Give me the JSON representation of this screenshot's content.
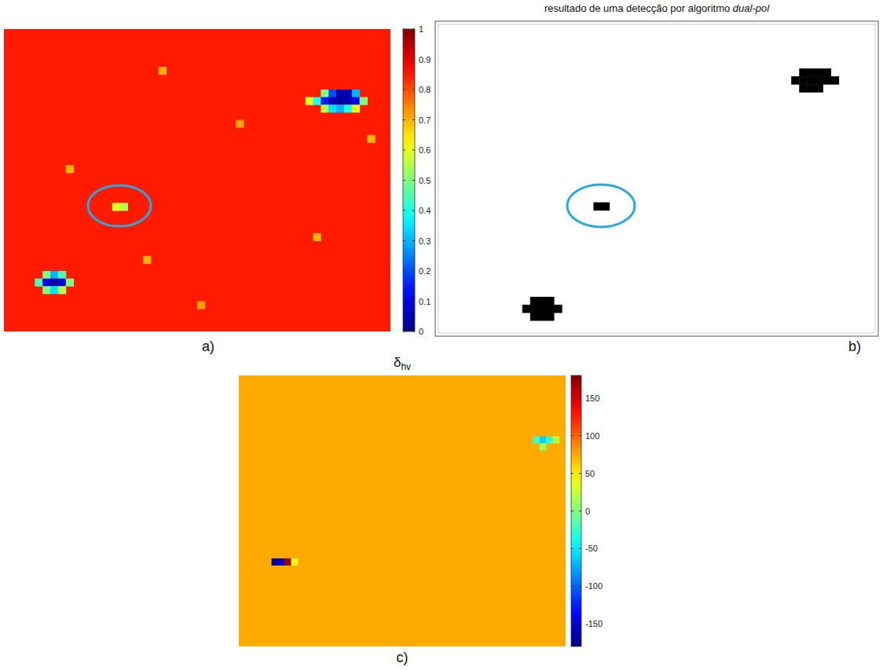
{
  "chart_data": [
    {
      "type": "heatmap",
      "label": "a)",
      "rows": 40,
      "cols": 50,
      "background": 0.85,
      "cells": [
        [
          8,
          41,
          0.5
        ],
        [
          8,
          42,
          0.2
        ],
        [
          8,
          43,
          0.05
        ],
        [
          8,
          44,
          0.05
        ],
        [
          8,
          45,
          0.3
        ],
        [
          9,
          39,
          0.6
        ],
        [
          9,
          40,
          0.4
        ],
        [
          9,
          41,
          0.15
        ],
        [
          9,
          42,
          0.05
        ],
        [
          9,
          43,
          0.02
        ],
        [
          9,
          44,
          0.05
        ],
        [
          9,
          45,
          0.1
        ],
        [
          9,
          46,
          0.5
        ],
        [
          10,
          41,
          0.55
        ],
        [
          10,
          42,
          0.35
        ],
        [
          10,
          43,
          0.3
        ],
        [
          10,
          44,
          0.4
        ],
        [
          10,
          45,
          0.6
        ],
        [
          32,
          5,
          0.5
        ],
        [
          32,
          6,
          0.3
        ],
        [
          32,
          7,
          0.45
        ],
        [
          33,
          4,
          0.45
        ],
        [
          33,
          5,
          0.1
        ],
        [
          33,
          6,
          0.03
        ],
        [
          33,
          7,
          0.08
        ],
        [
          33,
          8,
          0.5
        ],
        [
          34,
          5,
          0.5
        ],
        [
          34,
          6,
          0.35
        ],
        [
          34,
          7,
          0.55
        ],
        [
          23,
          14,
          0.6
        ],
        [
          23,
          15,
          0.55
        ],
        [
          5,
          20,
          0.7
        ],
        [
          12,
          30,
          0.72
        ],
        [
          18,
          8,
          0.7
        ],
        [
          27,
          40,
          0.7
        ],
        [
          36,
          25,
          0.72
        ],
        [
          14,
          47,
          0.7
        ],
        [
          30,
          18,
          0.7
        ]
      ],
      "colorbar": {
        "range": [
          0,
          1
        ],
        "ticks": [
          0,
          0.1,
          0.2,
          0.3,
          0.4,
          0.5,
          0.6,
          0.7,
          0.8,
          0.9,
          1
        ]
      }
    },
    {
      "type": "heatmap",
      "title": "resultado de uma detecção por algoritmo dual-pol",
      "label": "b)",
      "rows": 40,
      "cols": 56,
      "background": 1,
      "cells": [
        [
          6,
          46,
          0
        ],
        [
          6,
          47,
          0
        ],
        [
          6,
          48,
          0
        ],
        [
          6,
          49,
          0
        ],
        [
          7,
          45,
          0
        ],
        [
          7,
          46,
          0
        ],
        [
          7,
          47,
          0
        ],
        [
          7,
          48,
          0
        ],
        [
          7,
          49,
          0
        ],
        [
          7,
          50,
          0
        ],
        [
          8,
          46,
          0
        ],
        [
          8,
          47,
          0
        ],
        [
          8,
          48,
          0
        ],
        [
          35,
          12,
          0
        ],
        [
          35,
          13,
          0
        ],
        [
          35,
          14,
          0
        ],
        [
          36,
          11,
          0
        ],
        [
          36,
          12,
          0
        ],
        [
          36,
          13,
          0
        ],
        [
          36,
          14,
          0
        ],
        [
          36,
          15,
          0
        ],
        [
          37,
          12,
          0
        ],
        [
          37,
          13,
          0
        ],
        [
          37,
          14,
          0
        ],
        [
          23,
          20,
          0
        ],
        [
          23,
          21,
          0
        ]
      ],
      "zlim": [
        0,
        1
      ]
    },
    {
      "type": "heatmap",
      "title": "δhv",
      "label": "c)",
      "rows": 40,
      "cols": 50,
      "background": 75,
      "cells": [
        [
          9,
          45,
          -20
        ],
        [
          9,
          46,
          -60
        ],
        [
          9,
          47,
          -30
        ],
        [
          9,
          48,
          20
        ],
        [
          10,
          46,
          10
        ],
        [
          27,
          5,
          -170
        ],
        [
          27,
          6,
          -160
        ],
        [
          27,
          7,
          170
        ],
        [
          27,
          8,
          40
        ]
      ],
      "colorbar": {
        "range": [
          -180,
          180
        ],
        "ticks": [
          -150,
          -100,
          -50,
          0,
          50,
          100,
          150
        ]
      }
    }
  ]
}
